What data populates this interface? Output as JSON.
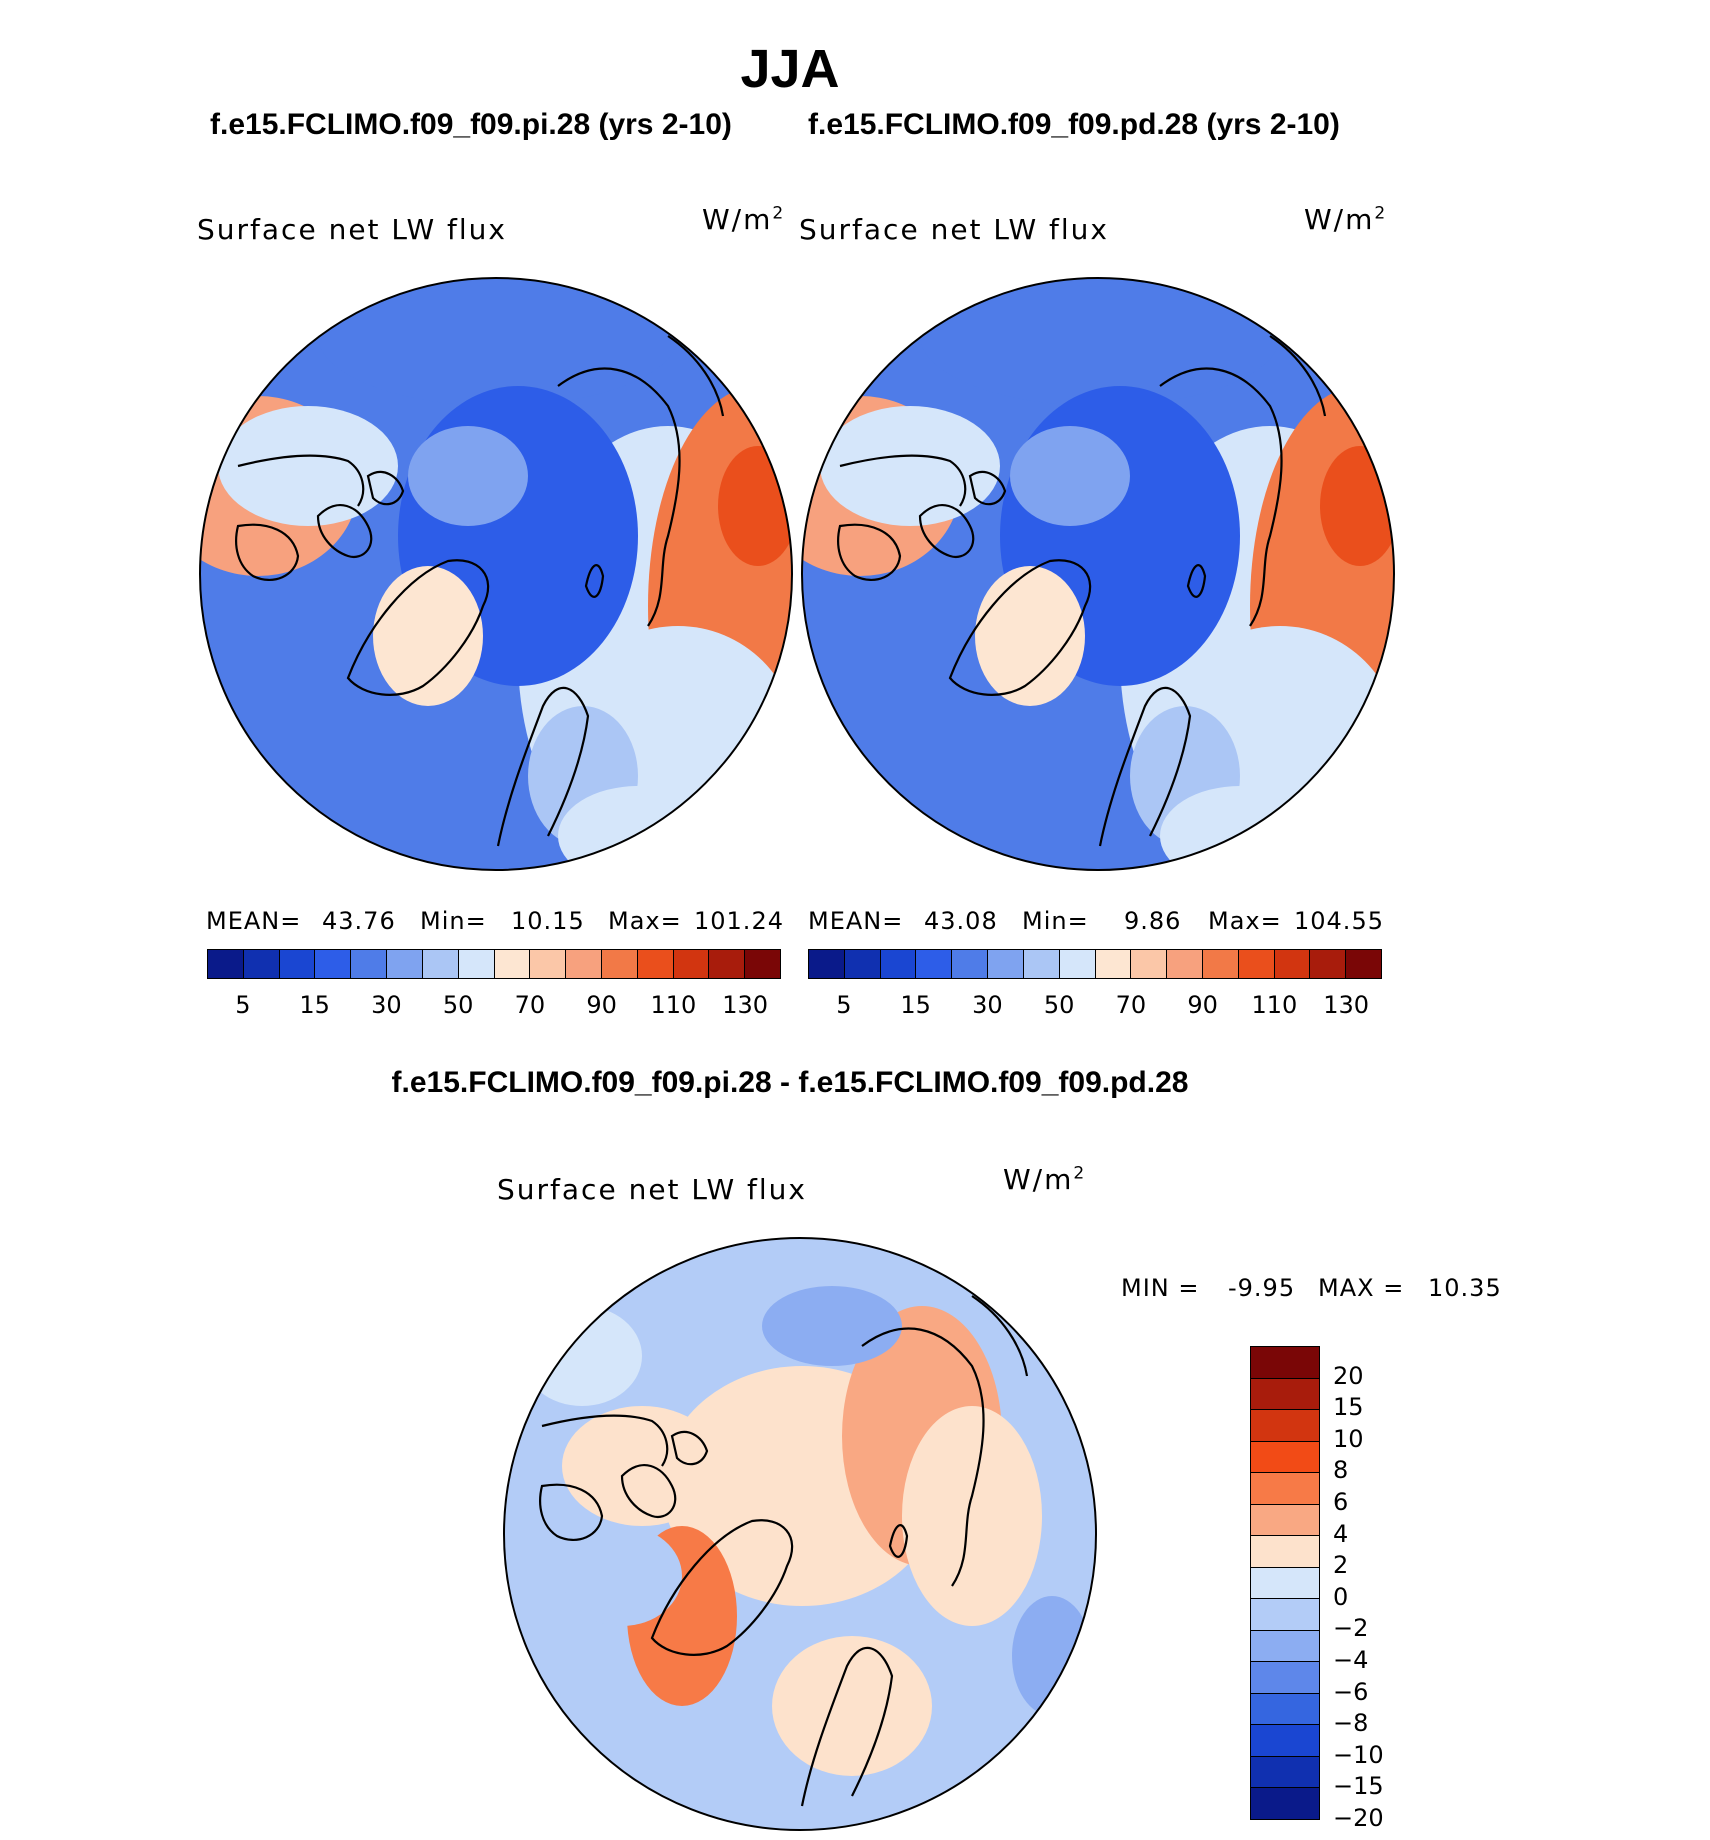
{
  "chart_data": [
    {
      "type": "heatmap",
      "projection": "north-polar-stereographic",
      "title": "JJA",
      "run_label": "f.e15.FCLIMO.f09_f09.pi.28 (yrs 2-10)",
      "variable": "Surface net LW flux",
      "units": "W/m",
      "units_sup": "2",
      "stats": {
        "mean_label": "MEAN=",
        "mean": "43.76",
        "min_label": "Min=",
        "min": "10.15",
        "max_label": "Max=",
        "max": "101.24"
      },
      "colorbar_levels": [
        "5",
        "10",
        "15",
        "20",
        "30",
        "40",
        "50",
        "60",
        "70",
        "80",
        "90",
        "100",
        "110",
        "120",
        "130"
      ],
      "colorbar_tick_labels": [
        "5",
        "15",
        "30",
        "50",
        "70",
        "90",
        "110",
        "130"
      ],
      "colors": [
        "#0a1a8a",
        "#1030b0",
        "#1a46d2",
        "#2d5de8",
        "#4f7ce8",
        "#7fa3f0",
        "#abc6f5",
        "#d5e6fa",
        "#fde6d2",
        "#fbc7a8",
        "#f7a17e",
        "#f27947",
        "#ea4f1c",
        "#d23510",
        "#a81c0c",
        "#7a0606"
      ],
      "regions": {
        "central_arctic_ocean": 15,
        "north_atlantic": 25,
        "greenland_interior": 65,
        "eurasia_interior": 95,
        "north_america_interior": 85,
        "siberia_coast": 55
      }
    },
    {
      "type": "heatmap",
      "projection": "north-polar-stereographic",
      "title": "JJA",
      "run_label": "f.e15.FCLIMO.f09_f09.pd.28 (yrs 2-10)",
      "variable": "Surface net LW flux",
      "units": "W/m",
      "units_sup": "2",
      "stats": {
        "mean_label": "MEAN=",
        "mean": "43.08",
        "min_label": "Min=",
        "min": "9.86",
        "max_label": "Max=",
        "max": "104.55"
      },
      "colorbar_levels": [
        "5",
        "10",
        "15",
        "20",
        "30",
        "40",
        "50",
        "60",
        "70",
        "80",
        "90",
        "100",
        "110",
        "120",
        "130"
      ],
      "colorbar_tick_labels": [
        "5",
        "15",
        "30",
        "50",
        "70",
        "90",
        "110",
        "130"
      ],
      "colors": [
        "#0a1a8a",
        "#1030b0",
        "#1a46d2",
        "#2d5de8",
        "#4f7ce8",
        "#7fa3f0",
        "#abc6f5",
        "#d5e6fa",
        "#fde6d2",
        "#fbc7a8",
        "#f7a17e",
        "#f27947",
        "#ea4f1c",
        "#d23510",
        "#a81c0c",
        "#7a0606"
      ],
      "regions": {
        "central_arctic_ocean": 15,
        "north_atlantic": 25,
        "greenland_interior": 60,
        "eurasia_interior": 98,
        "north_america_interior": 88,
        "siberia_coast": 55
      }
    },
    {
      "type": "heatmap",
      "projection": "north-polar-stereographic",
      "title": "f.e15.FCLIMO.f09_f09.pi.28 - f.e15.FCLIMO.f09_f09.pd.28",
      "variable": "Surface net LW flux",
      "units": "W/m",
      "units_sup": "2",
      "stats": {
        "min_label": "MIN =",
        "min": "-9.95",
        "max_label": "MAX =",
        "max": "10.35"
      },
      "colorbar_levels": [
        "20",
        "15",
        "10",
        "8",
        "6",
        "4",
        "2",
        "0",
        "−2",
        "−4",
        "−6",
        "−8",
        "−10",
        "−15",
        "−20"
      ],
      "colors_top_to_bottom": [
        "#7a0606",
        "#a81c0c",
        "#d23510",
        "#f24b16",
        "#f77a47",
        "#f9a883",
        "#fde2cc",
        "#d5e6fa",
        "#b3ccf7",
        "#8cadf2",
        "#5e87ea",
        "#3566e0",
        "#1a46d2",
        "#1030b0",
        "#0a1a8a"
      ],
      "regions": {
        "central_arctic_ocean": 3,
        "greenland": 7,
        "eastern_siberia": 5,
        "north_america": -2,
        "north_atlantic": -1,
        "north_pacific": -4
      }
    }
  ]
}
